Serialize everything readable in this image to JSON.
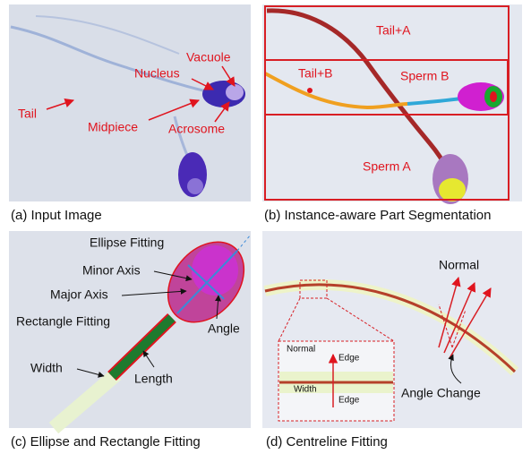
{
  "panels": [
    {
      "caption": "(a) Input Image",
      "labels": [
        "Vacuole",
        "Nucleus",
        "Tail",
        "Midpiece",
        "Acrosome"
      ]
    },
    {
      "caption": "(b) Instance-aware Part Segmentation",
      "labels": [
        "Tail+A",
        "Tail+B",
        "Sperm B",
        "Sperm A"
      ]
    },
    {
      "caption": "(c) Ellipse and Rectangle Fitting",
      "labels": [
        "Ellipse Fitting",
        "Minor Axis",
        "Major Axis",
        "Rectangle Fitting",
        "Angle",
        "Width",
        "Length"
      ]
    },
    {
      "caption": "(d) Centreline Fitting",
      "labels": [
        "Normal",
        "Normal",
        "Edge",
        "Width",
        "Edge",
        "Angle Change"
      ]
    }
  ]
}
